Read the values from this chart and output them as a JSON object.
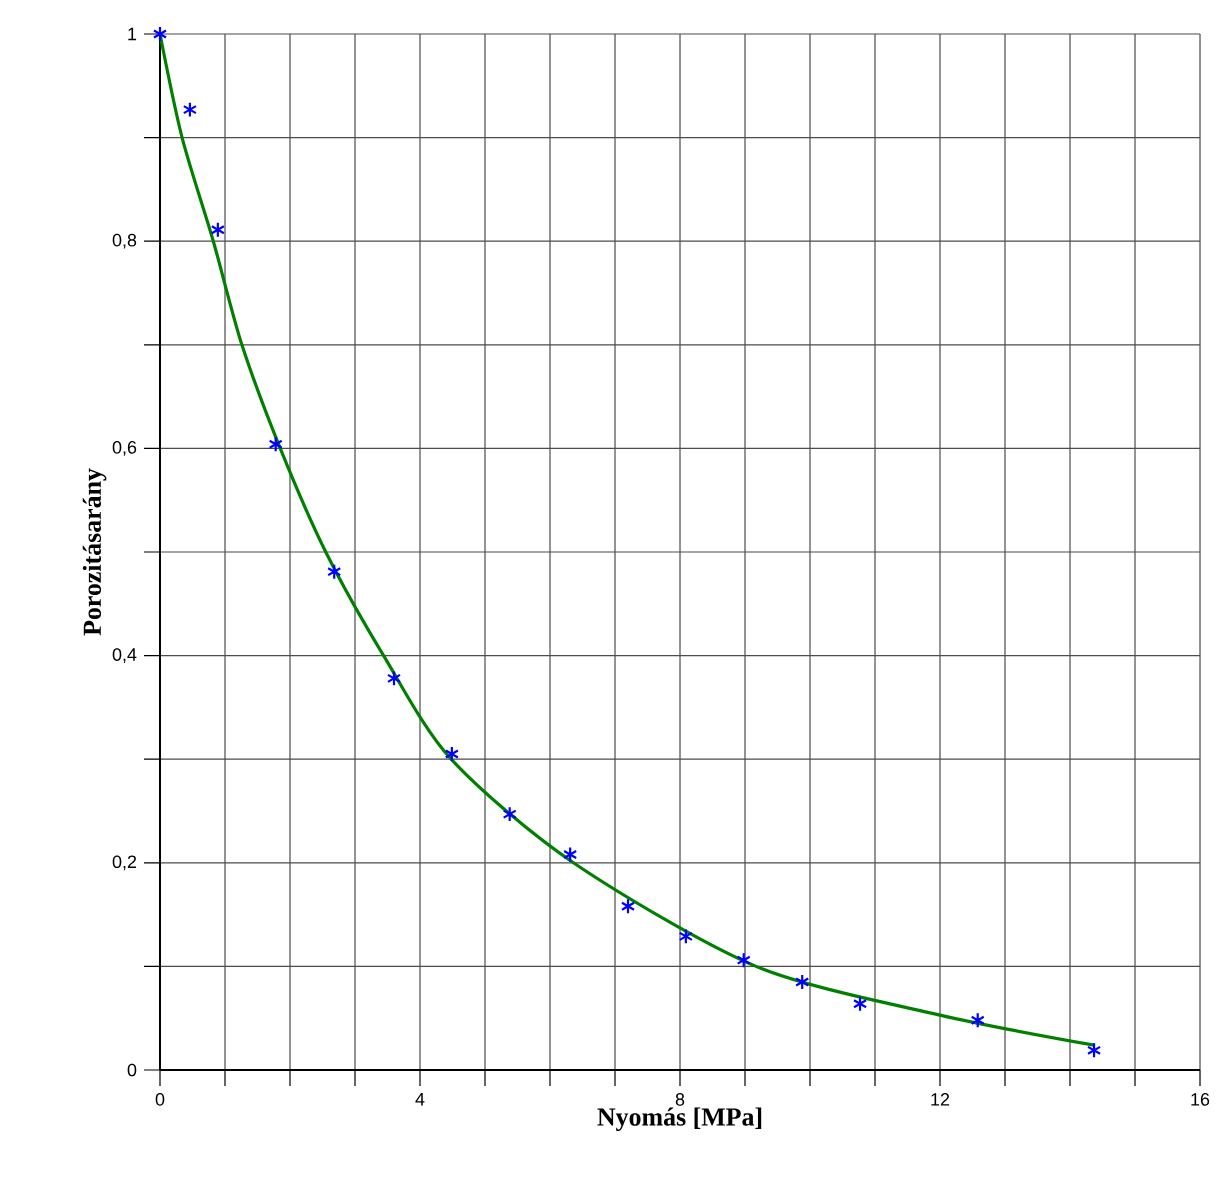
{
  "chart_data": {
    "type": "scatter",
    "xlabel": "Nyomás [MPa]",
    "ylabel": "Porozitásarány",
    "xlim": [
      0,
      16
    ],
    "ylim": [
      0,
      1
    ],
    "xticks": [
      0,
      {
        "value": 1,
        "label": null
      },
      {
        "value": 2,
        "label": null
      },
      {
        "value": 3,
        "label": null
      },
      4,
      {
        "value": 5,
        "label": null
      },
      {
        "value": 6,
        "label": null
      },
      {
        "value": 7,
        "label": null
      },
      8,
      {
        "value": 9,
        "label": null
      },
      {
        "value": 10,
        "label": null
      },
      {
        "value": 11,
        "label": null
      },
      12,
      {
        "value": 13,
        "label": null
      },
      {
        "value": 14,
        "label": null
      },
      {
        "value": 15,
        "label": null
      },
      16
    ],
    "yticks": [
      0,
      {
        "value": 0.1,
        "label": null
      },
      {
        "value": 0.2,
        "label": "0,2"
      },
      {
        "value": 0.3,
        "label": null
      },
      {
        "value": 0.4,
        "label": "0,4"
      },
      {
        "value": 0.5,
        "label": null
      },
      {
        "value": 0.6,
        "label": "0,6"
      },
      {
        "value": 0.7,
        "label": null
      },
      {
        "value": 0.8,
        "label": "0,8"
      },
      {
        "value": 0.9,
        "label": null
      },
      1
    ],
    "grid": true,
    "series": [
      {
        "type": "line",
        "color": "#008000",
        "marker": "none",
        "x": [
          0,
          0.34,
          0.82,
          1.26,
          1.85,
          2.55,
          3.44,
          4.48,
          6.36,
          9.17,
          12,
          14.37
        ],
        "values": [
          1,
          0.9,
          0.8,
          0.7,
          0.6,
          0.5,
          0.4,
          0.3,
          0.2,
          0.1,
          0.053,
          0.024
        ]
      },
      {
        "color": "#0000ff",
        "marker": "cross",
        "x": [
          0,
          0.46,
          0.89,
          1.78,
          2.68,
          3.6,
          4.49,
          5.38,
          6.31,
          7.2,
          8.09,
          8.98,
          9.88,
          10.77,
          12.58,
          14.37
        ],
        "values": [
          1,
          0.927,
          0.811,
          0.604,
          0.481,
          0.378,
          0.305,
          0.247,
          0.208,
          0.158,
          0.129,
          0.106,
          0.085,
          0.064,
          0.048,
          0.019
        ]
      }
    ]
  }
}
